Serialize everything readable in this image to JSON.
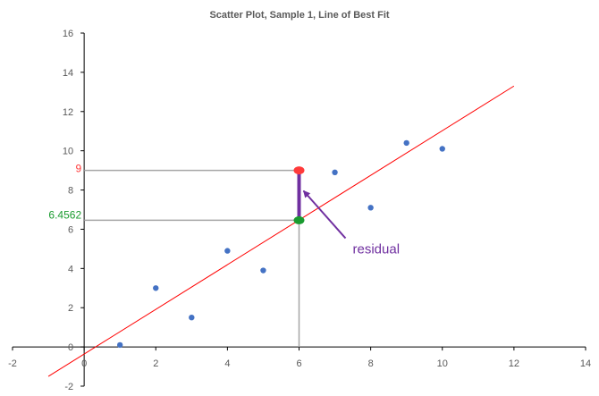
{
  "chart_data": {
    "type": "scatter",
    "title": "Scatter Plot, Sample 1, Line of Best Fit",
    "xlabel": "",
    "ylabel": "",
    "xlim": [
      -2,
      14
    ],
    "ylim": [
      -2,
      16
    ],
    "x_ticks": [
      -2,
      0,
      2,
      4,
      6,
      8,
      10,
      12,
      14
    ],
    "y_ticks": [
      -2,
      0,
      2,
      4,
      6,
      8,
      10,
      12,
      14,
      16
    ],
    "grid": false,
    "legend": "none",
    "series": [
      {
        "color": "#4472c4",
        "points": [
          {
            "x": 1,
            "y": 0.1
          },
          {
            "x": 2,
            "y": 3
          },
          {
            "x": 3,
            "y": 1.5
          },
          {
            "x": 4,
            "y": 4.9
          },
          {
            "x": 5,
            "y": 3.9
          },
          {
            "x": 6,
            "y": 9
          },
          {
            "x": 7,
            "y": 8.9
          },
          {
            "x": 8,
            "y": 7.1
          },
          {
            "x": 9,
            "y": 10.4
          },
          {
            "x": 10,
            "y": 10.1
          }
        ]
      }
    ],
    "best_fit_line": {
      "color": "#ff0000",
      "from": {
        "x": -1,
        "y": -1.5
      },
      "to": {
        "x": 12,
        "y": 13.3
      }
    },
    "highlight": {
      "x": 6,
      "observed_y": 9,
      "predicted_y": 6.4562,
      "observed_label": "9",
      "predicted_label": "6.4562",
      "observed_color": "#ff3b3b",
      "predicted_color": "#1a9b2f",
      "residual_color": "#7030a0",
      "residual_label": "residual"
    }
  }
}
